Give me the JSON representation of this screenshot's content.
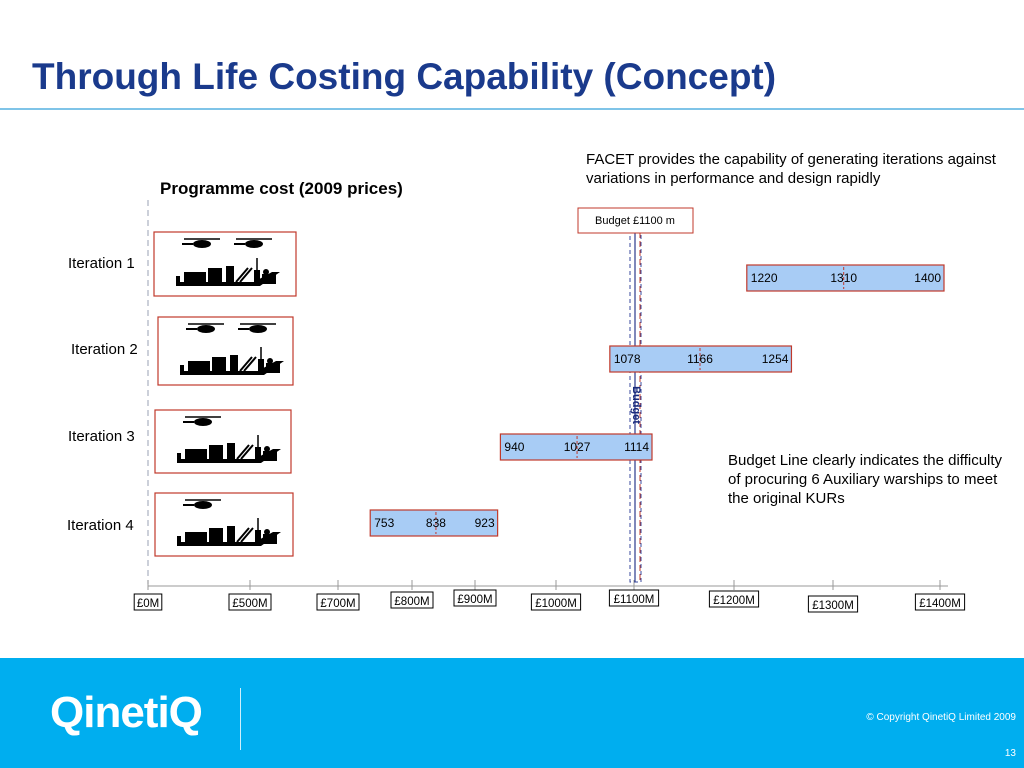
{
  "slide": {
    "title": "Through Life Costing Capability (Concept)",
    "note_top": "FACET provides the capability of generating iterations against variations in performance and design rapidly",
    "note_side": "Budget Line clearly indicates the difficulty of procuring 6 Auxiliary warships to meet the original KURs",
    "copyright": "© Copyright QinetiQ Limited 2009",
    "page_number": "13",
    "logo_text": "QinetiQ"
  },
  "colors": {
    "title": "#1a3a8c",
    "bar_fill": "#a8ccf5",
    "bar_border": "#c0392b",
    "budget_line": "#2b3a8c",
    "footer": "#00aeef"
  },
  "chart_data": {
    "type": "bar",
    "title": "Programme cost (2009 prices)",
    "orientation": "horizontal-range",
    "categories": [
      "Iteration 1",
      "Iteration 2",
      "Iteration 3",
      "Iteration 4"
    ],
    "ranges": [
      {
        "name": "Iteration 1",
        "low": 1220,
        "mid": 1310,
        "high": 1400,
        "low_label": "1220",
        "mid_label": "1310",
        "high_label": "1400"
      },
      {
        "name": "Iteration 2",
        "low": 1078,
        "mid": 1166,
        "high": 1254,
        "low_label": "1078",
        "mid_label": "1166",
        "high_label": "1254"
      },
      {
        "name": "Iteration 3",
        "low": 940,
        "mid": 1027,
        "high": 1114,
        "low_label": "940",
        "mid_label": "1027",
        "high_label": "1114"
      },
      {
        "name": "Iteration 4",
        "low": 753,
        "mid": 838,
        "high": 923,
        "low_label": "753",
        "mid_label": "838",
        "high_label": "923"
      }
    ],
    "x_ticks": [
      {
        "value": 0,
        "label": "£0M"
      },
      {
        "value": 500,
        "label": "£500M"
      },
      {
        "value": 700,
        "label": "£700M"
      },
      {
        "value": 800,
        "label": "£800M"
      },
      {
        "value": 900,
        "label": "£900M"
      },
      {
        "value": 1000,
        "label": "£1000M"
      },
      {
        "value": 1100,
        "label": "£1100M"
      },
      {
        "value": 1200,
        "label": "£1200M"
      },
      {
        "value": 1300,
        "label": "£1300M"
      },
      {
        "value": 1400,
        "label": "£1400M"
      }
    ],
    "budget": {
      "value": 1100,
      "box_label": "Budget £1100 m",
      "line_label": "Budget"
    },
    "platform_icons": [
      {
        "helicopters": 2
      },
      {
        "helicopters": 2
      },
      {
        "helicopters": 1
      },
      {
        "helicopters": 1
      }
    ]
  }
}
